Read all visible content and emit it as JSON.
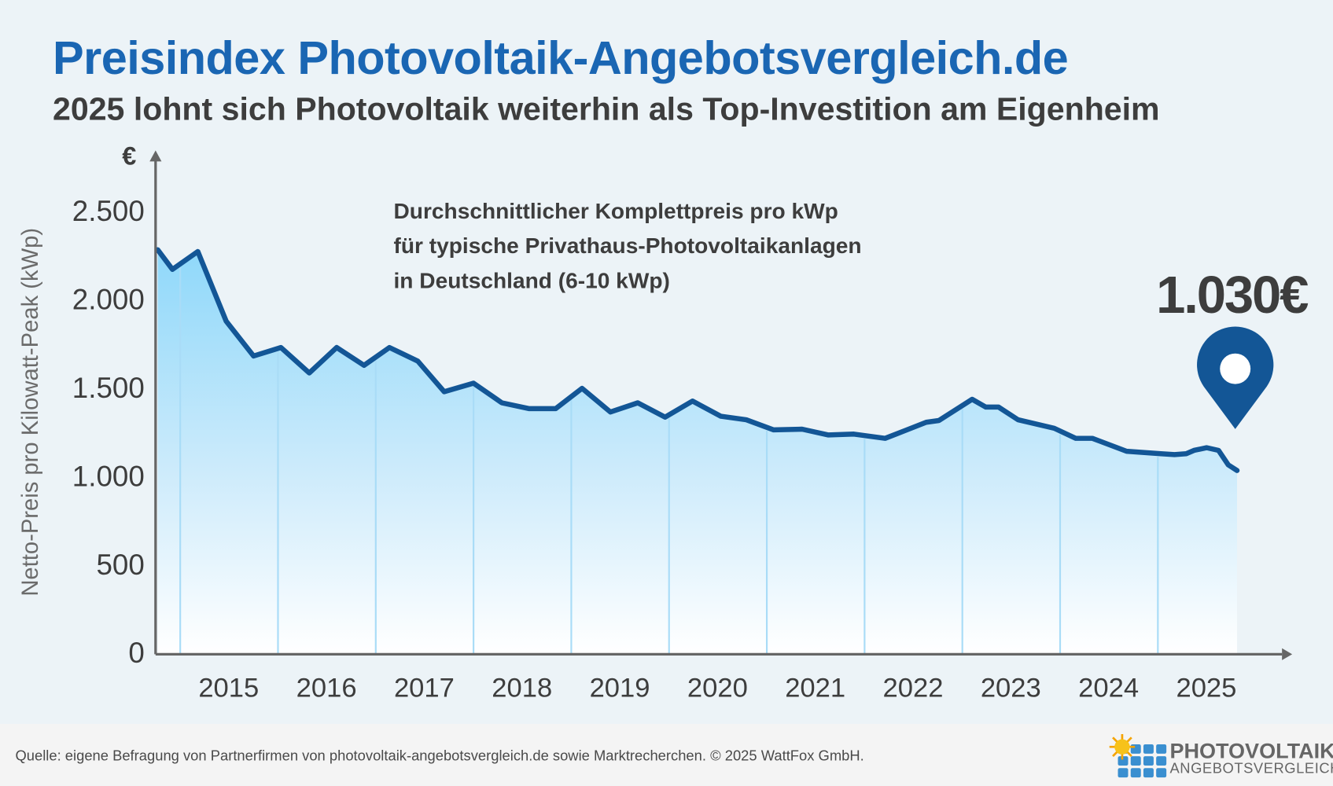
{
  "header": {
    "title": "Preisindex Photovoltaik-Angebotsvergleich.de",
    "subtitle": "2025 lohnt sich Photovoltaik weiterhin als Top-Investition am Eigenheim"
  },
  "annotation": {
    "lines": [
      "Durchschnittlicher Komplettpreis pro kWp",
      "für typische Privathaus-Photovoltaikanlagen",
      "in Deutschland (6-10 kWp)"
    ],
    "current_value": "1.030€",
    "marker_icon": "map-pin-icon"
  },
  "chart_data": {
    "type": "area",
    "ylabel": "Netto-Preis pro Kilowatt-Peak (kWp)",
    "yunit": "€",
    "ylim": [
      0,
      2500
    ],
    "yticks": [
      0,
      500,
      1000,
      1500,
      2000,
      2500
    ],
    "ytick_labels": [
      "0",
      "500",
      "1.000",
      "1.500",
      "2.000",
      "2.500"
    ],
    "xticks": [
      "2015",
      "2016",
      "2017",
      "2018",
      "2019",
      "2020",
      "2021",
      "2022",
      "2023",
      "2024",
      "2025"
    ],
    "xlim": [
      2014.77,
      2025.81
    ],
    "grid": "vertical year lines",
    "line_color": "#135696",
    "fill_color": "#8fd8fa",
    "x": [
      2014.77,
      2014.92,
      2015.18,
      2015.47,
      2015.75,
      2016.03,
      2016.32,
      2016.6,
      2016.88,
      2017.14,
      2017.43,
      2017.7,
      2018.0,
      2018.29,
      2018.57,
      2018.84,
      2019.11,
      2019.4,
      2019.68,
      2019.96,
      2020.24,
      2020.53,
      2020.79,
      2021.07,
      2021.36,
      2021.63,
      2021.89,
      2022.21,
      2022.41,
      2022.63,
      2022.76,
      2023.1,
      2023.24,
      2023.37,
      2023.57,
      2023.94,
      2024.16,
      2024.33,
      2024.68,
      2025.03,
      2025.17,
      2025.29,
      2025.37,
      2025.5,
      2025.62,
      2025.72,
      2025.81
    ],
    "values": [
      2279,
      2168,
      2269,
      1875,
      1678,
      1726,
      1582,
      1726,
      1625,
      1726,
      1649,
      1476,
      1524,
      1413,
      1380,
      1380,
      1495,
      1361,
      1413,
      1332,
      1423,
      1337,
      1317,
      1260,
      1264,
      1231,
      1236,
      1212,
      1255,
      1303,
      1313,
      1433,
      1389,
      1389,
      1317,
      1269,
      1212,
      1212,
      1139,
      1125,
      1120,
      1125,
      1144,
      1159,
      1144,
      1062,
      1030
    ]
  },
  "footer": {
    "source": "Quelle: eigene Befragung von Partnerfirmen von photovoltaik-angebotsvergleich.de sowie Marktrecherchen. © 2025 WattFox GmbH.",
    "logo_line1": "PHOTOVOLTAIK",
    "logo_line2": "ANGEBOTSVERGLEICH"
  }
}
